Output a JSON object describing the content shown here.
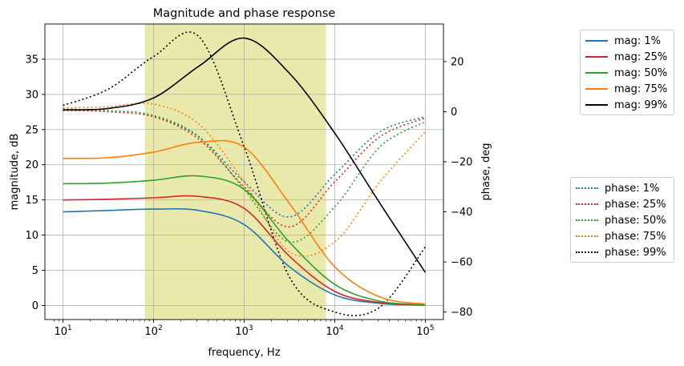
{
  "chart_data": {
    "type": "line",
    "title": "Magnitude and phase response",
    "xlabel": "frequency, Hz",
    "ylabel_left": "magnitude, dB",
    "ylabel_right": "phase, deg",
    "xscale": "log",
    "xlim": [
      10,
      100000
    ],
    "ylim_left": [
      -2,
      40
    ],
    "ylim_right": [
      -83,
      35
    ],
    "grid": true,
    "x_tick_labels": [
      "10^1",
      "10^2",
      "10^3",
      "10^4",
      "10^5"
    ],
    "y_left_ticks": [
      0,
      5,
      10,
      15,
      20,
      25,
      30,
      35
    ],
    "y_right_ticks": [
      -80,
      -60,
      -40,
      -20,
      0,
      20
    ],
    "shaded_band": {
      "x_start": 80,
      "x_end": 8000,
      "color": "#d4d45a"
    },
    "x": [
      10,
      31.6,
      100,
      316,
      1000,
      3160,
      10000,
      31600,
      100000
    ],
    "magnitude_series": [
      {
        "name": "mag: 1%",
        "color": "#1f77b4",
        "axis": "left",
        "values": [
          13.3,
          13.5,
          13.7,
          13.5,
          11.5,
          5.5,
          1.5,
          0.3,
          0.05
        ]
      },
      {
        "name": "mag: 25%",
        "color": "#d62728",
        "axis": "left",
        "values": [
          15.0,
          15.1,
          15.3,
          15.5,
          13.8,
          7.0,
          2.0,
          0.4,
          0.05
        ]
      },
      {
        "name": "mag: 50%",
        "color": "#2ca02c",
        "axis": "left",
        "values": [
          17.3,
          17.4,
          17.8,
          18.4,
          16.5,
          9.0,
          3.0,
          0.6,
          0.1
        ]
      },
      {
        "name": "mag: 75%",
        "color": "#ff7f0e",
        "axis": "left",
        "values": [
          20.9,
          21.0,
          21.8,
          23.2,
          22.5,
          14.5,
          5.5,
          1.2,
          0.2
        ]
      },
      {
        "name": "mag: 99%",
        "color": "#000000",
        "axis": "left",
        "values": [
          27.8,
          28.0,
          29.5,
          34.0,
          38.0,
          33.0,
          24.5,
          14.5,
          4.7
        ]
      }
    ],
    "phase_series": [
      {
        "name": "phase: 1%",
        "color": "#1f77b4",
        "axis": "right",
        "values": [
          0.5,
          0,
          -2,
          -10,
          -28,
          -42,
          -25,
          -8,
          -2
        ]
      },
      {
        "name": "phase: 25%",
        "color": "#d62728",
        "axis": "right",
        "values": [
          0.5,
          0,
          -2,
          -11,
          -30,
          -46,
          -28,
          -10,
          -2.5
        ]
      },
      {
        "name": "phase: 50%",
        "color": "#2ca02c",
        "axis": "right",
        "values": [
          1,
          0.5,
          -1.5,
          -10,
          -31,
          -52,
          -38,
          -14,
          -4
        ]
      },
      {
        "name": "phase: 75%",
        "color": "#ff7f0e",
        "axis": "right",
        "values": [
          1.5,
          2,
          3,
          -5,
          -28,
          -56,
          -52,
          -28,
          -8
        ]
      },
      {
        "name": "phase: 99%",
        "color": "#000000",
        "axis": "right",
        "values": [
          2.5,
          9,
          22,
          30,
          -14,
          -66,
          -80,
          -78,
          -54
        ]
      }
    ],
    "legend_magnitude": {
      "placement": "right-top",
      "entries": [
        "mag: 1%",
        "mag: 25%",
        "mag: 50%",
        "mag: 75%",
        "mag: 99%"
      ]
    },
    "legend_phase": {
      "placement": "right-middle",
      "entries": [
        "phase: 1%",
        "phase: 25%",
        "phase: 50%",
        "phase: 75%",
        "phase: 99%"
      ]
    }
  }
}
